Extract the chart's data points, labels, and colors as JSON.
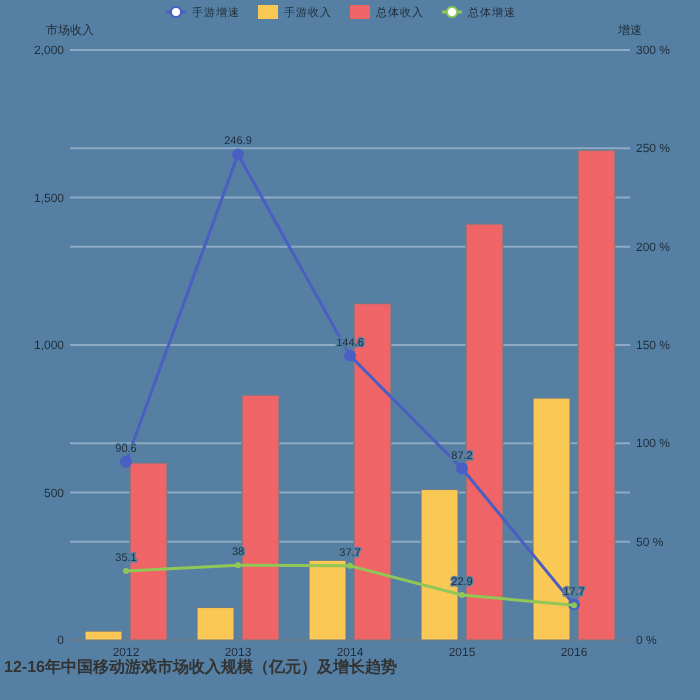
{
  "chart_data": {
    "type": "bar",
    "title": "12-16年中国移动游戏市场收入规模（亿元）及增长趋势",
    "ylabel": "市场收入",
    "y2label": "增速",
    "categories": [
      "2012",
      "2013",
      "2014",
      "2015",
      "2016"
    ],
    "series": [
      {
        "name": "手游增速",
        "type": "line",
        "axis": "y2",
        "color": "#4a5fc1",
        "values": [
          90.6,
          246.9,
          144.6,
          87.2,
          18
        ],
        "value_labels": [
          "90.6",
          "246.9",
          "144.6",
          "87.2",
          null
        ]
      },
      {
        "name": "手游收入",
        "color": "#f9c855",
        "values": [
          30,
          110,
          270,
          510,
          820
        ]
      },
      {
        "name": "总体收入",
        "color": "#ef6567",
        "values": [
          600,
          830,
          1140,
          1410,
          1660
        ]
      },
      {
        "name": "总体增速",
        "type": "line",
        "axis": "y2",
        "color": "#91c756",
        "values": [
          35.1,
          38,
          37.7,
          22.9,
          17.7
        ],
        "value_labels": [
          "35.1",
          "38",
          "37.7",
          "22.9",
          "17.7"
        ]
      }
    ],
    "ylim": [
      0,
      2000
    ],
    "yticks": [
      0,
      {
        "value": 500,
        "label": "500"
      },
      {
        "value": 1000,
        "label": "1,000"
      },
      {
        "value": 1500,
        "label": "1,500"
      },
      {
        "value": 2000,
        "label": "2,000"
      }
    ],
    "y2lim": [
      0,
      300
    ],
    "y2ticks": [
      {
        "value": 0,
        "label": "0 %"
      },
      {
        "value": 50,
        "label": "50 %"
      },
      {
        "value": 100,
        "label": "100 %"
      },
      {
        "value": 150,
        "label": "150 %"
      },
      {
        "value": 200,
        "label": "200 %"
      },
      {
        "value": 250,
        "label": "250 %"
      },
      {
        "value": 300,
        "label": "300 %"
      }
    ],
    "grid": true,
    "legend": "top",
    "marker": "circle"
  }
}
